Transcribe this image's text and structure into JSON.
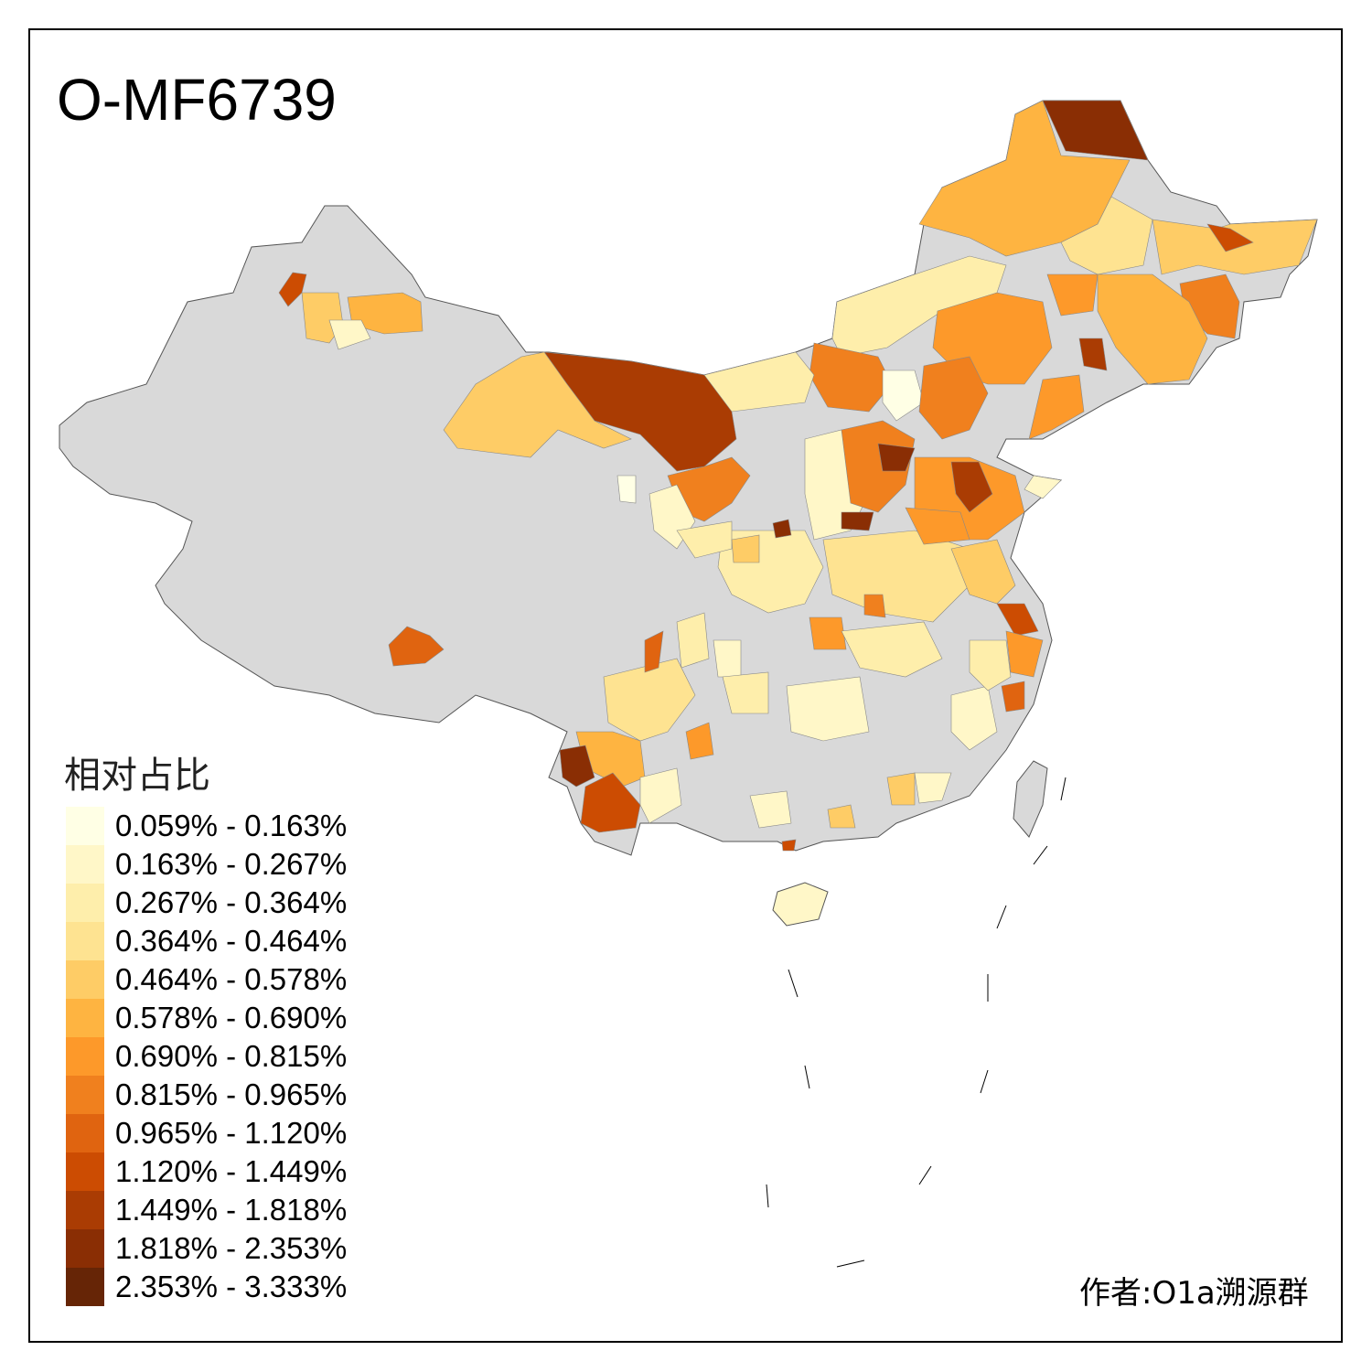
{
  "title": "O-MF6739",
  "legend": {
    "title": "相对占比",
    "items": [
      {
        "label": "0.059% - 0.163%",
        "color": "#ffffe5"
      },
      {
        "label": "0.163% - 0.267%",
        "color": "#fff7c8"
      },
      {
        "label": "0.267% - 0.364%",
        "color": "#feeeab"
      },
      {
        "label": "0.364% - 0.464%",
        "color": "#fee391"
      },
      {
        "label": "0.464% - 0.578%",
        "color": "#fecc66"
      },
      {
        "label": "0.578% - 0.690%",
        "color": "#feb441"
      },
      {
        "label": "0.690% - 0.815%",
        "color": "#fd992a"
      },
      {
        "label": "0.815% - 0.965%",
        "color": "#f0801e"
      },
      {
        "label": "0.965% - 1.120%",
        "color": "#e06410"
      },
      {
        "label": "1.120% - 1.449%",
        "color": "#cc4c02"
      },
      {
        "label": "1.449% - 1.818%",
        "color": "#aa3c03"
      },
      {
        "label": "1.818% - 2.353%",
        "color": "#8a2e04"
      },
      {
        "label": "2.353% - 3.333%",
        "color": "#662506"
      }
    ]
  },
  "no_data_color": "#d9d9d9",
  "author": "作者:O1a溯源群"
}
